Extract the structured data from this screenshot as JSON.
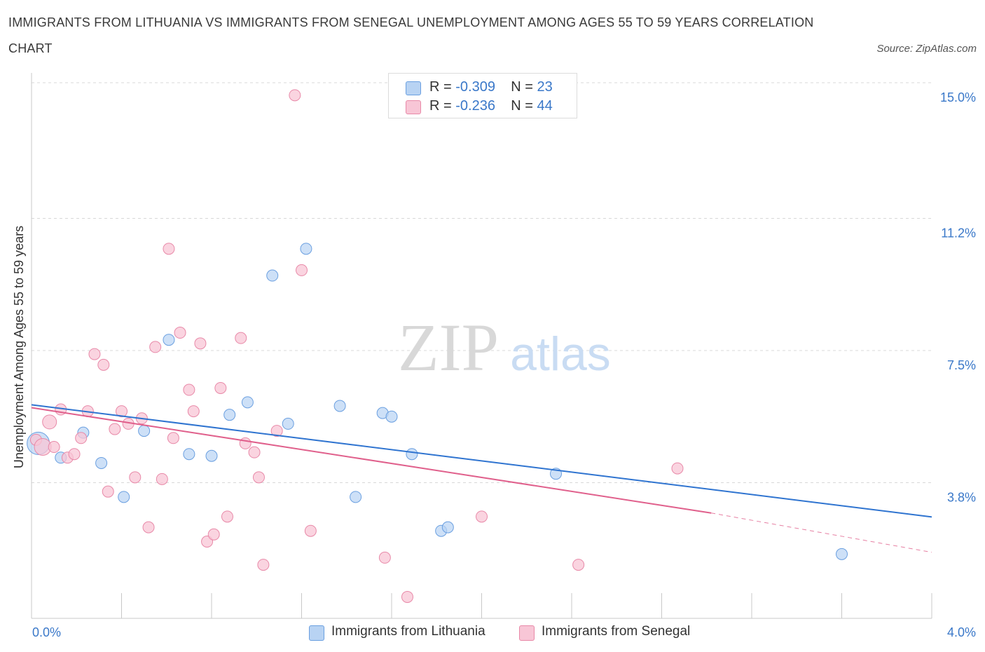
{
  "title": "IMMIGRANTS FROM LITHUANIA VS IMMIGRANTS FROM SENEGAL UNEMPLOYMENT AMONG AGES 55 TO 59 YEARS CORRELATION CHART",
  "source": "Source: ZipAtlas.com",
  "watermark": {
    "zip": "ZIP",
    "atlas": "atlas"
  },
  "legend": {
    "r_label": "R =",
    "n_label": "N =",
    "rows": [
      {
        "r": "-0.309",
        "n": "23"
      },
      {
        "r": "-0.236",
        "n": "44"
      }
    ]
  },
  "colors": {
    "lithuania_fill": "#b8d3f3",
    "lithuania_stroke": "#6a9fe0",
    "lithuania_line": "#2f74d0",
    "senegal_fill": "#f8c6d6",
    "senegal_stroke": "#e889a8",
    "senegal_line": "#e0608c",
    "tick_text": "#3a78c9",
    "grid": "#d8d8d8"
  },
  "chart_data": {
    "type": "scatter",
    "title": "IMMIGRANTS FROM LITHUANIA VS IMMIGRANTS FROM SENEGAL UNEMPLOYMENT AMONG AGES 55 TO 59 YEARS CORRELATION CHART",
    "xlabel": "",
    "ylabel": "Unemployment Among Ages 55 to 59 years",
    "xlim": [
      0,
      4.0
    ],
    "ylim": [
      0,
      15.0
    ],
    "x_tick_labels": [
      "0.0%",
      "4.0%"
    ],
    "y_ticks": [
      3.8,
      7.5,
      11.2,
      15.0
    ],
    "y_tick_labels": [
      "3.8%",
      "7.5%",
      "11.2%",
      "15.0%"
    ],
    "grid": true,
    "legend_position": "bottom-center",
    "series": [
      {
        "name": "Immigrants from Lithuania",
        "points": [
          [
            0.03,
            4.9
          ],
          [
            0.13,
            4.5
          ],
          [
            0.23,
            5.2
          ],
          [
            0.31,
            4.35
          ],
          [
            0.41,
            3.4
          ],
          [
            0.5,
            5.25
          ],
          [
            0.61,
            7.8
          ],
          [
            0.7,
            4.6
          ],
          [
            0.8,
            4.55
          ],
          [
            0.88,
            5.7
          ],
          [
            0.96,
            6.05
          ],
          [
            1.07,
            9.6
          ],
          [
            1.14,
            5.45
          ],
          [
            1.22,
            10.35
          ],
          [
            1.37,
            5.95
          ],
          [
            1.44,
            3.4
          ],
          [
            1.56,
            5.75
          ],
          [
            1.6,
            5.65
          ],
          [
            1.69,
            4.6
          ],
          [
            1.82,
            2.45
          ],
          [
            1.85,
            2.55
          ],
          [
            2.33,
            4.05
          ],
          [
            3.6,
            1.8
          ]
        ],
        "trend": {
          "x": [
            0,
            4.0
          ],
          "y": [
            5.98,
            2.84
          ]
        }
      },
      {
        "name": "Immigrants from Senegal",
        "points": [
          [
            0.02,
            5.0
          ],
          [
            0.05,
            4.8
          ],
          [
            0.08,
            5.5
          ],
          [
            0.1,
            4.8
          ],
          [
            0.13,
            5.85
          ],
          [
            0.16,
            4.5
          ],
          [
            0.19,
            4.6
          ],
          [
            0.22,
            5.05
          ],
          [
            0.25,
            5.8
          ],
          [
            0.28,
            7.4
          ],
          [
            0.32,
            7.1
          ],
          [
            0.34,
            3.55
          ],
          [
            0.37,
            5.3
          ],
          [
            0.4,
            5.8
          ],
          [
            0.43,
            5.45
          ],
          [
            0.46,
            3.95
          ],
          [
            0.49,
            5.6
          ],
          [
            0.52,
            2.55
          ],
          [
            0.55,
            7.6
          ],
          [
            0.58,
            3.9
          ],
          [
            0.61,
            10.35
          ],
          [
            0.63,
            5.05
          ],
          [
            0.66,
            8.0
          ],
          [
            0.7,
            6.4
          ],
          [
            0.72,
            5.8
          ],
          [
            0.75,
            7.7
          ],
          [
            0.78,
            2.15
          ],
          [
            0.81,
            2.35
          ],
          [
            0.84,
            6.45
          ],
          [
            0.87,
            2.85
          ],
          [
            0.93,
            7.85
          ],
          [
            0.95,
            4.9
          ],
          [
            0.99,
            4.65
          ],
          [
            1.01,
            3.95
          ],
          [
            1.03,
            1.5
          ],
          [
            1.09,
            5.25
          ],
          [
            1.17,
            14.65
          ],
          [
            1.2,
            9.75
          ],
          [
            1.24,
            2.45
          ],
          [
            1.57,
            1.7
          ],
          [
            1.67,
            0.6
          ],
          [
            2.0,
            2.85
          ],
          [
            2.43,
            1.5
          ],
          [
            2.87,
            4.2
          ]
        ],
        "trend": {
          "x": [
            0,
            3.02
          ],
          "y": [
            5.9,
            2.95
          ]
        },
        "trend_dashed": {
          "x": [
            3.02,
            4.0
          ],
          "y": [
            2.95,
            1.85
          ]
        }
      }
    ]
  }
}
